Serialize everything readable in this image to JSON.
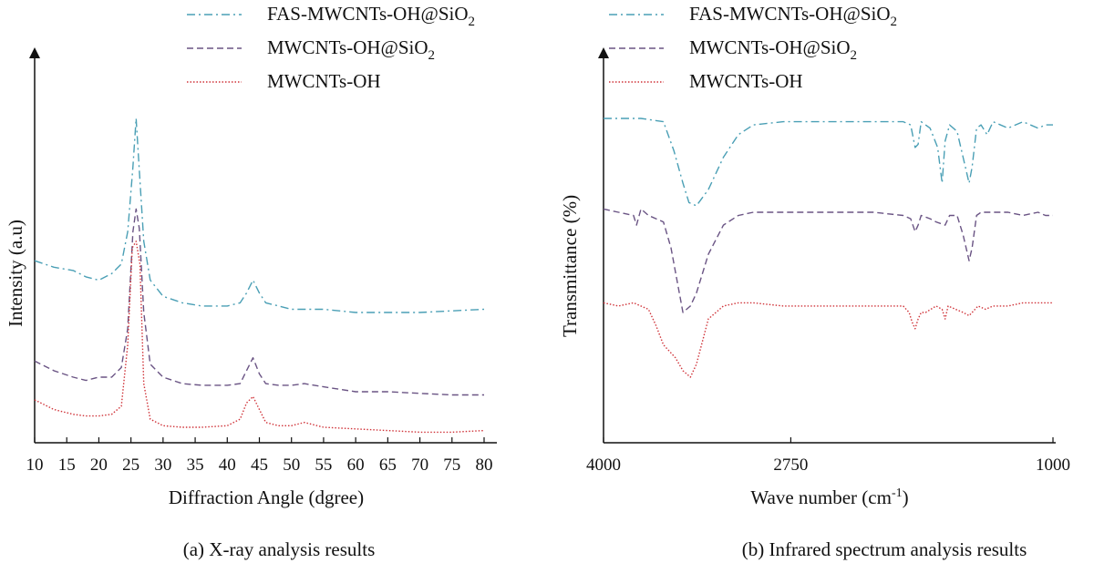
{
  "colors": {
    "fas": "#4a9fb5",
    "mw": "#6a5484",
    "oh": "#d0343a",
    "axis": "#111111"
  },
  "legend": [
    {
      "name": "FAS-MWCNTs-OH@SiO",
      "sub": "2",
      "style": "dashdot",
      "color_key": "fas"
    },
    {
      "name": "MWCNTs-OH@SiO",
      "sub": "2",
      "style": "dash",
      "color_key": "mw"
    },
    {
      "name": "MWCNTs-OH",
      "sub": "",
      "style": "dot",
      "color_key": "oh"
    }
  ],
  "chart_data": [
    {
      "type": "line",
      "caption": "(a) X-ray analysis results",
      "xlabel": "Diffraction Angle (dgree)",
      "ylabel": "Intensity (a.u)",
      "xlim": [
        10,
        80
      ],
      "x_ticks": [
        10,
        15,
        20,
        25,
        30,
        35,
        40,
        45,
        50,
        55,
        60,
        65,
        70,
        75,
        80
      ],
      "y_ticks": [],
      "ylim": [
        0,
        100
      ],
      "grid": false,
      "legend_position": "top",
      "series": [
        {
          "name": "FAS-MWCNTs-OH@SiO2",
          "x": [
            10,
            13,
            16,
            18,
            20,
            22,
            23.5,
            24.5,
            25.3,
            25.8,
            26.3,
            27,
            28,
            30,
            33,
            36,
            40,
            42,
            43,
            44,
            45,
            46,
            48,
            50,
            55,
            60,
            65,
            70,
            75,
            80
          ],
          "y": [
            56,
            54,
            53,
            51,
            50,
            52,
            55,
            65,
            85,
            100,
            84,
            62,
            50,
            45,
            43,
            42,
            42,
            43,
            46,
            50,
            46,
            43,
            42,
            41,
            41,
            40,
            40,
            40,
            40.5,
            41
          ]
        },
        {
          "name": "MWCNTs-OH@SiO2",
          "x": [
            10,
            13,
            16,
            18,
            20,
            22,
            23.5,
            24.5,
            25.3,
            25.8,
            26.3,
            27,
            28,
            30,
            33,
            36,
            40,
            42,
            43,
            44,
            45,
            46,
            48,
            50,
            52,
            55,
            60,
            65,
            70,
            75,
            80
          ],
          "y": [
            25,
            22,
            20,
            19,
            20,
            20,
            23,
            35,
            65,
            72,
            66,
            40,
            24,
            20,
            18,
            17.5,
            17.5,
            18,
            22,
            26,
            21,
            18,
            17.5,
            17.5,
            18,
            17,
            15.5,
            15.5,
            15,
            14.5,
            14.5
          ]
        },
        {
          "name": "MWCNTs-OH",
          "x": [
            10,
            13,
            16,
            18,
            20,
            22,
            23.5,
            24.5,
            25.2,
            25.8,
            26.4,
            27,
            28,
            30,
            33,
            36,
            40,
            42,
            43,
            44,
            45,
            46,
            48,
            50,
            52,
            55,
            60,
            65,
            70,
            75,
            80
          ],
          "y": [
            13,
            10,
            8.5,
            8,
            8,
            8.5,
            11,
            30,
            60,
            62,
            55,
            18,
            7,
            5,
            4.5,
            4.5,
            5,
            7,
            12,
            14,
            10,
            6,
            5,
            5,
            6,
            4.5,
            4,
            3.5,
            3,
            3,
            3.5
          ]
        }
      ]
    },
    {
      "type": "line",
      "caption": "(b) Infrared spectrum analysis results",
      "xlabel": "Wave number (cm",
      "xlabel_sup": "-1",
      "xlabel_end": ")",
      "ylabel": "Transmittance (%)",
      "xlim": [
        4000,
        1000
      ],
      "x_ticks": [
        4000,
        2750,
        1000
      ],
      "y_ticks": [],
      "ylim": [
        0,
        100
      ],
      "grid": false,
      "legend_position": "top",
      "series": [
        {
          "name": "FAS-MWCNTs-OH@SiO2",
          "x": [
            4000,
            3750,
            3600,
            3530,
            3470,
            3430,
            3380,
            3300,
            3200,
            3100,
            3000,
            2800,
            2500,
            2200,
            2000,
            1950,
            1920,
            1900,
            1880,
            1820,
            1770,
            1740,
            1720,
            1690,
            1640,
            1600,
            1560,
            1540,
            1510,
            1480,
            1440,
            1400,
            1300,
            1200,
            1100,
            1050,
            1020,
            1000
          ],
          "y": [
            100,
            100,
            99,
            90,
            80,
            74,
            73,
            78,
            88,
            95,
            98,
            99,
            99,
            99,
            99,
            98,
            91,
            92,
            99,
            97,
            91,
            80,
            93,
            98,
            96,
            88,
            80,
            85,
            97,
            98,
            95,
            99,
            97,
            99,
            97,
            98,
            98,
            98
          ]
        },
        {
          "name": "MWCNTs-OH@SiO2",
          "x": [
            4000,
            3900,
            3800,
            3780,
            3750,
            3700,
            3600,
            3550,
            3470,
            3420,
            3380,
            3300,
            3200,
            3100,
            3000,
            2800,
            2500,
            2200,
            2000,
            1950,
            1920,
            1900,
            1880,
            1820,
            1780,
            1720,
            1690,
            1640,
            1600,
            1560,
            1540,
            1510,
            1480,
            1440,
            1400,
            1300,
            1200,
            1100,
            1050,
            1000
          ],
          "y": [
            72,
            71,
            70,
            67,
            72,
            70,
            68,
            60,
            40,
            42,
            46,
            58,
            67,
            70,
            71,
            71,
            71,
            71,
            70,
            69,
            65,
            67,
            70,
            69,
            68,
            67,
            70,
            70,
            64,
            56,
            60,
            70,
            71,
            71,
            71,
            71,
            70,
            71,
            70,
            70
          ]
        },
        {
          "name": "MWCNTs-OH",
          "x": [
            4000,
            3900,
            3800,
            3700,
            3650,
            3600,
            3520,
            3470,
            3420,
            3380,
            3300,
            3200,
            3100,
            3000,
            2800,
            2500,
            2200,
            2000,
            1960,
            1940,
            1920,
            1900,
            1880,
            1850,
            1780,
            1740,
            1720,
            1700,
            1650,
            1600,
            1560,
            1540,
            1500,
            1450,
            1400,
            1300,
            1200,
            1100,
            1050,
            1000
          ],
          "y": [
            43,
            42,
            43,
            41,
            36,
            30,
            26,
            22,
            20,
            24,
            38,
            42,
            43,
            43,
            42,
            42,
            42,
            42,
            40,
            37,
            35,
            38,
            40,
            40,
            42,
            41,
            38,
            42,
            41,
            40,
            39,
            40,
            42,
            41,
            42,
            42,
            43,
            43,
            43,
            43
          ]
        }
      ]
    }
  ]
}
